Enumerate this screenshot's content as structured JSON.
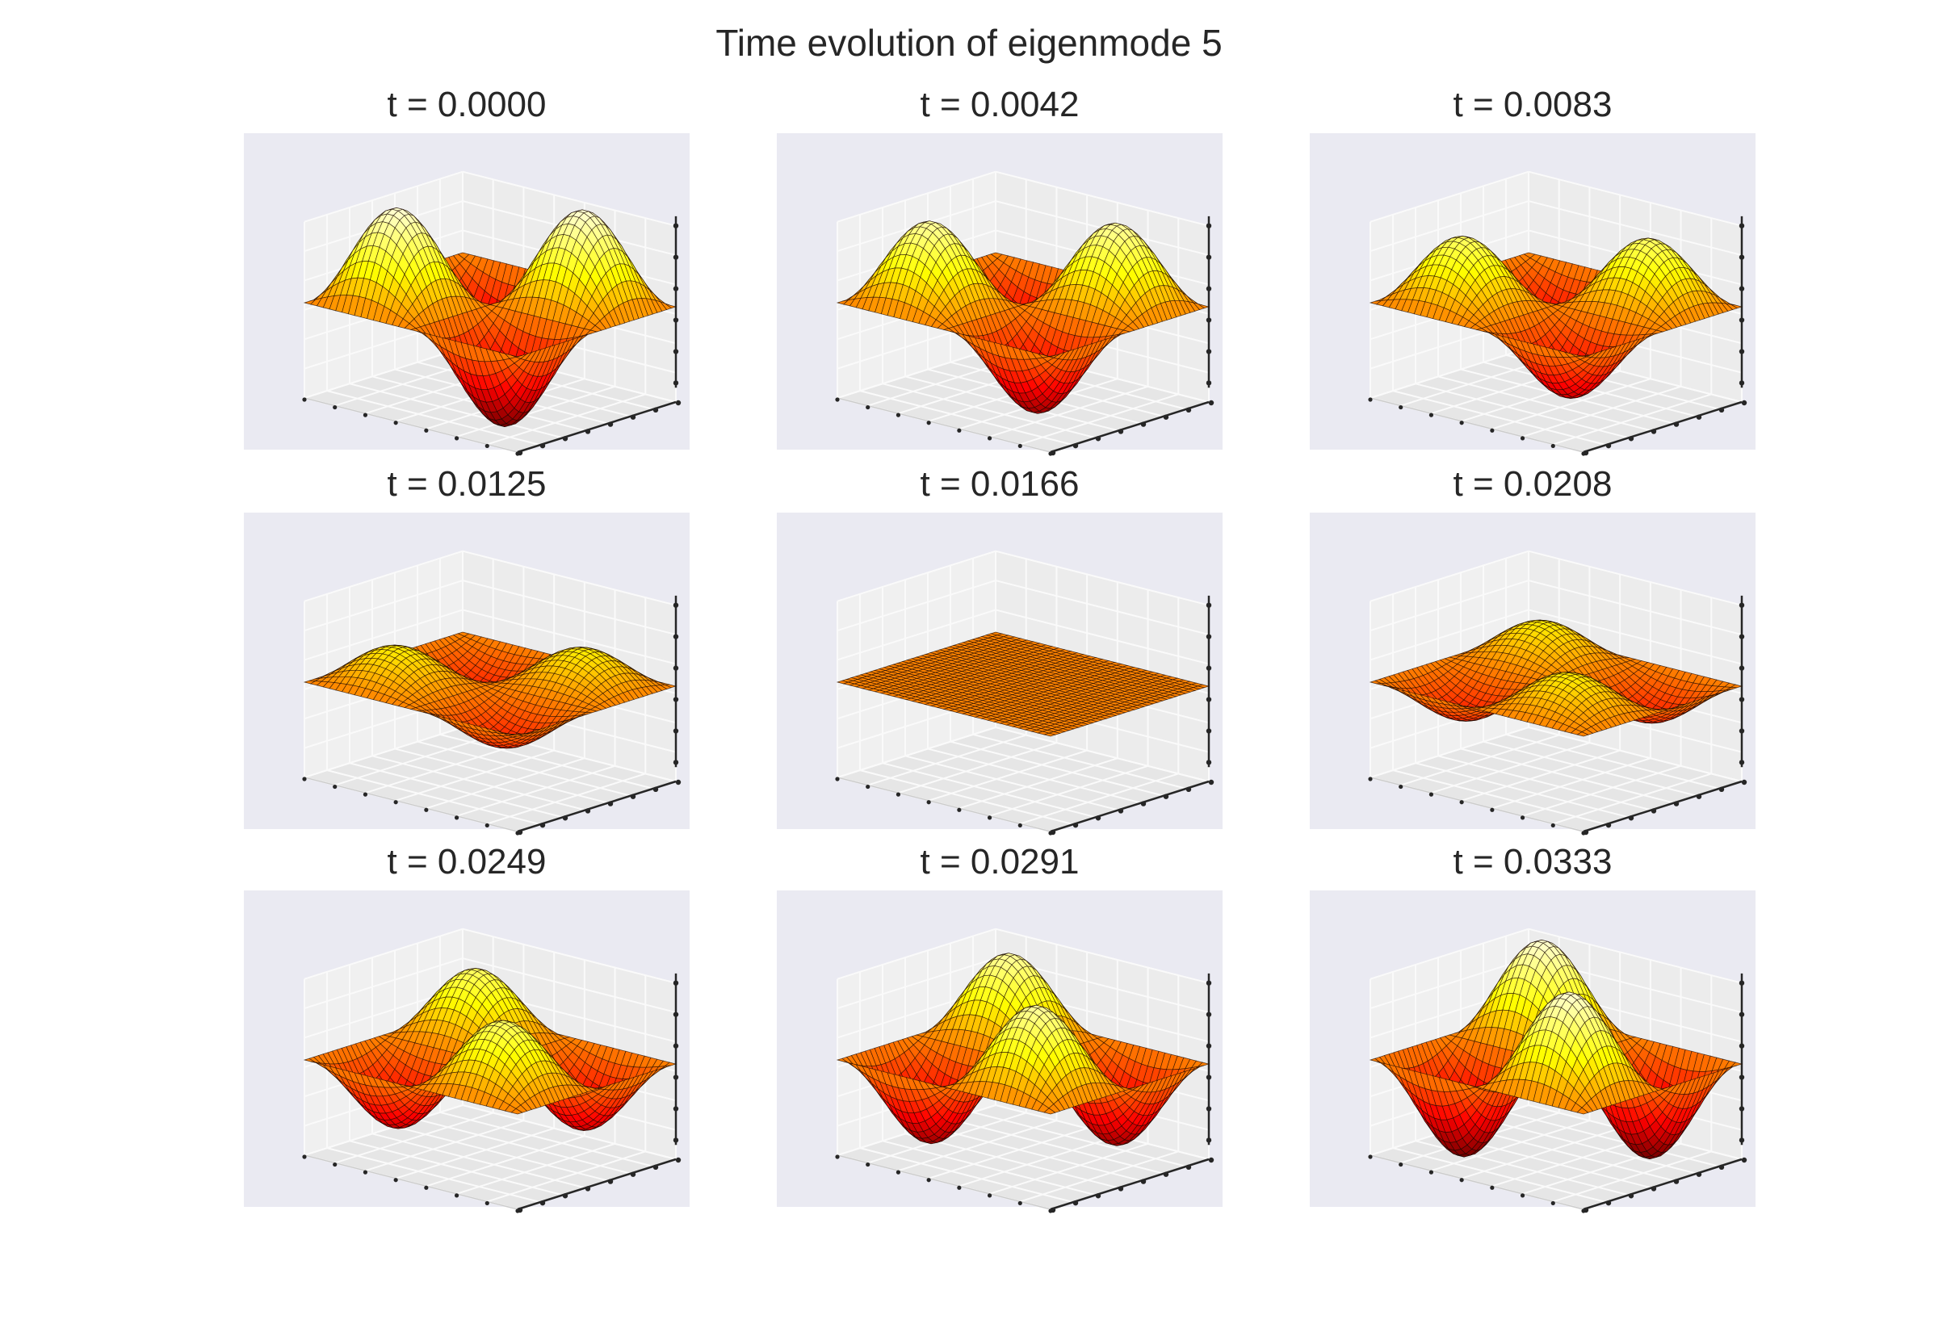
{
  "title": "Time evolution of eigenmode 5",
  "chart_data": {
    "type": "surface",
    "title": "Time evolution of eigenmode 5",
    "layout": "3x3 grid",
    "colormap": "hot",
    "grid": true,
    "axis_tick_labels": "hidden",
    "surface": "membrane mode (2,2): Z = cos(2*pi*f*t) * sin(2*pi*x) * sin(2*pi*y), x,y in [0,1]",
    "panels": [
      {
        "title": "t = 0.0000",
        "t": 0.0,
        "amplitude": 1.0
      },
      {
        "title": "t = 0.0042",
        "t": 0.0042,
        "amplitude": 0.86
      },
      {
        "title": "t = 0.0083",
        "t": 0.0083,
        "amplitude": 0.7
      },
      {
        "title": "t = 0.0125",
        "t": 0.0125,
        "amplitude": 0.38
      },
      {
        "title": "t = 0.0166",
        "t": 0.0166,
        "amplitude": 0.0
      },
      {
        "title": "t = 0.0208",
        "t": 0.0208,
        "amplitude": -0.38
      },
      {
        "title": "t = 0.0249",
        "t": 0.0249,
        "amplitude": -0.7
      },
      {
        "title": "t = 0.0291",
        "t": 0.0291,
        "amplitude": -0.86
      },
      {
        "title": "t = 0.0333",
        "t": 0.0333,
        "amplitude": -1.0
      }
    ]
  }
}
